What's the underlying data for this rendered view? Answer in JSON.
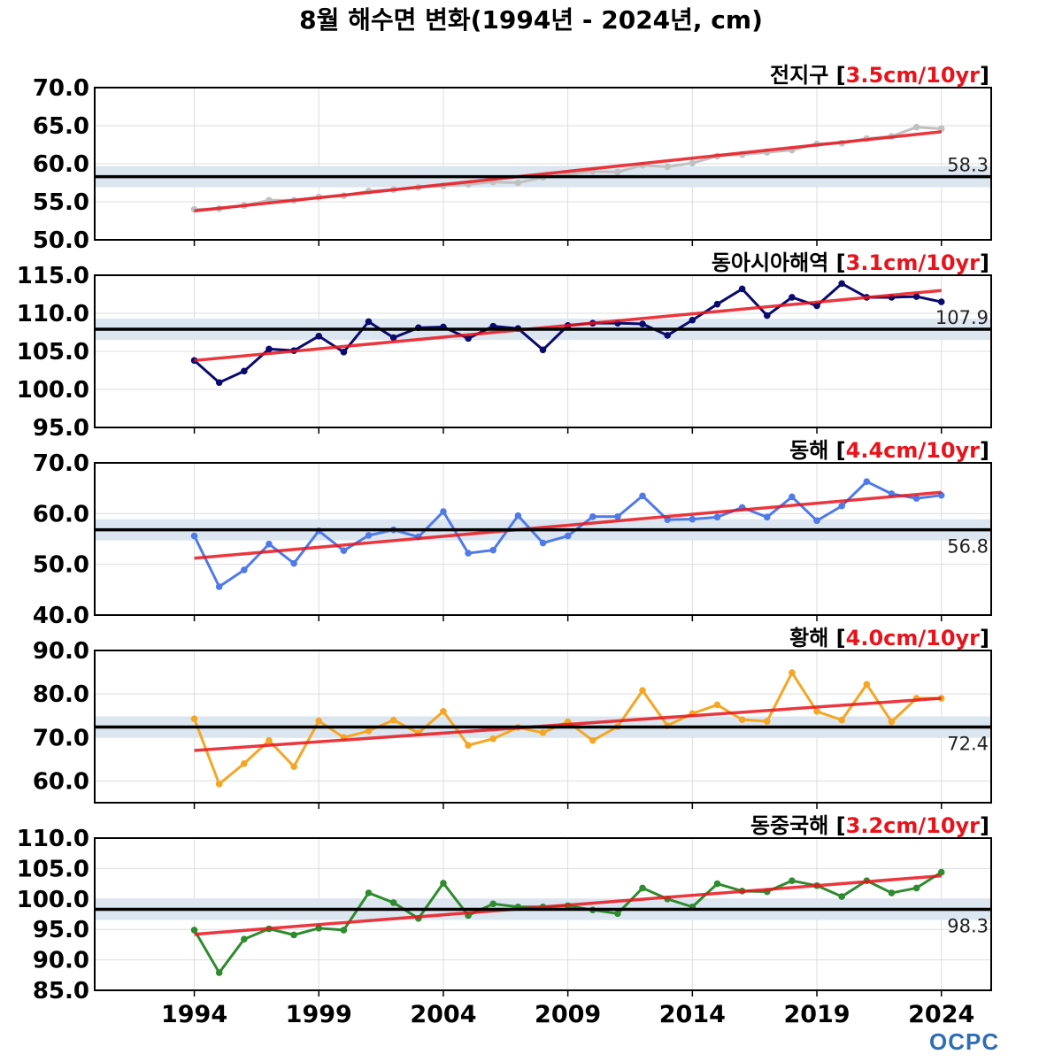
{
  "chart_data": {
    "title": "8월 해수면 변화(1994년 - 2024년, cm)",
    "type": "line",
    "x": [
      1994,
      1995,
      1996,
      1997,
      1998,
      1999,
      2000,
      2001,
      2002,
      2003,
      2004,
      2005,
      2006,
      2007,
      2008,
      2009,
      2010,
      2011,
      2012,
      2013,
      2014,
      2015,
      2016,
      2017,
      2018,
      2019,
      2020,
      2021,
      2022,
      2023,
      2024
    ],
    "xticks": [
      1994,
      1999,
      2004,
      2009,
      2014,
      2019,
      2024
    ],
    "xlim": [
      1990,
      2026
    ],
    "grid": true,
    "panels": [
      {
        "name": "전지구",
        "trend_label": "3.5cm/10yr",
        "ylim": [
          50,
          70
        ],
        "yticks": [
          "50.0",
          "55.0",
          "60.0",
          "65.0",
          "70.0"
        ],
        "mean": 58.3,
        "mean_label": "58.3",
        "color": "#c0c0c0",
        "trend": [
          53.8,
          64.2
        ],
        "values": [
          54.0,
          54.1,
          54.5,
          55.2,
          55.2,
          55.6,
          55.8,
          56.4,
          56.6,
          56.9,
          57.1,
          57.3,
          57.6,
          57.5,
          58.2,
          58.6,
          59.0,
          58.9,
          59.8,
          59.6,
          60.1,
          61.0,
          61.2,
          61.5,
          61.8,
          62.6,
          62.7,
          63.3,
          63.6,
          64.8,
          64.6
        ]
      },
      {
        "name": "동아시아해역",
        "trend_label": "3.1cm/10yr",
        "ylim": [
          95,
          115
        ],
        "yticks": [
          "95.0",
          "100.0",
          "105.0",
          "110.0",
          "115.0"
        ],
        "mean": 107.9,
        "mean_label": "107.9",
        "color": "#0a0a6e",
        "trend": [
          103.8,
          113.0
        ],
        "values": [
          103.8,
          100.9,
          102.4,
          105.3,
          105.1,
          107.0,
          104.9,
          108.9,
          106.8,
          108.1,
          108.2,
          106.7,
          108.3,
          108.0,
          105.2,
          108.4,
          108.7,
          108.7,
          108.6,
          107.1,
          109.1,
          111.2,
          113.2,
          109.7,
          112.1,
          111.0,
          113.9,
          112.1,
          112.1,
          112.2,
          111.5
        ]
      },
      {
        "name": "동해",
        "trend_label": "4.4cm/10yr",
        "ylim": [
          40,
          70
        ],
        "yticks": [
          "40.0",
          "50.0",
          "60.0",
          "70.0"
        ],
        "mean": 56.8,
        "mean_label": "56.8",
        "color": "#4f7ae8",
        "trend": [
          51.2,
          64.2
        ],
        "values": [
          55.6,
          45.6,
          48.9,
          54.0,
          50.2,
          56.6,
          52.7,
          55.7,
          56.8,
          55.4,
          60.4,
          52.2,
          52.8,
          59.6,
          54.2,
          55.6,
          59.4,
          59.4,
          63.5,
          58.8,
          58.9,
          59.3,
          61.2,
          59.3,
          63.3,
          58.6,
          61.5,
          66.3,
          63.9,
          63.0,
          63.6
        ]
      },
      {
        "name": "황해",
        "trend_label": "4.0cm/10yr",
        "ylim": [
          55,
          90
        ],
        "yticks": [
          "60.0",
          "70.0",
          "80.0",
          "90.0"
        ],
        "mean": 72.4,
        "mean_label": "72.4",
        "color": "#f5a623",
        "trend": [
          67.0,
          79.0
        ],
        "values": [
          74.3,
          59.3,
          64.0,
          69.3,
          63.3,
          73.8,
          70.0,
          71.5,
          74.0,
          71.0,
          76.0,
          68.2,
          69.7,
          72.3,
          71.1,
          73.6,
          69.3,
          72.5,
          80.8,
          72.7,
          75.5,
          77.5,
          74.1,
          73.7,
          84.9,
          76.0,
          74.0,
          82.2,
          73.6,
          79.0,
          79.0
        ]
      },
      {
        "name": "동중국해",
        "trend_label": "3.2cm/10yr",
        "ylim": [
          85,
          110
        ],
        "yticks": [
          "85.0",
          "90.0",
          "95.0",
          "100.0",
          "105.0",
          "110.0"
        ],
        "mean": 98.3,
        "mean_label": "98.3",
        "color": "#2e8b2e",
        "trend": [
          94.2,
          103.8
        ],
        "values": [
          94.9,
          87.9,
          93.4,
          95.1,
          94.1,
          95.2,
          94.9,
          101.0,
          99.4,
          96.8,
          102.6,
          97.3,
          99.2,
          98.7,
          98.7,
          98.9,
          98.2,
          97.6,
          101.8,
          100.0,
          98.7,
          102.5,
          101.3,
          101.2,
          103.0,
          102.2,
          100.4,
          103.0,
          101.0,
          101.8,
          104.4
        ]
      }
    ]
  },
  "colors": {
    "trend": "#e8141c",
    "mean": "#000000",
    "mean_band": "#dce6f0",
    "grid": "#dddddd",
    "trend_label": "#e8141c"
  },
  "logo_text": "OCPC"
}
